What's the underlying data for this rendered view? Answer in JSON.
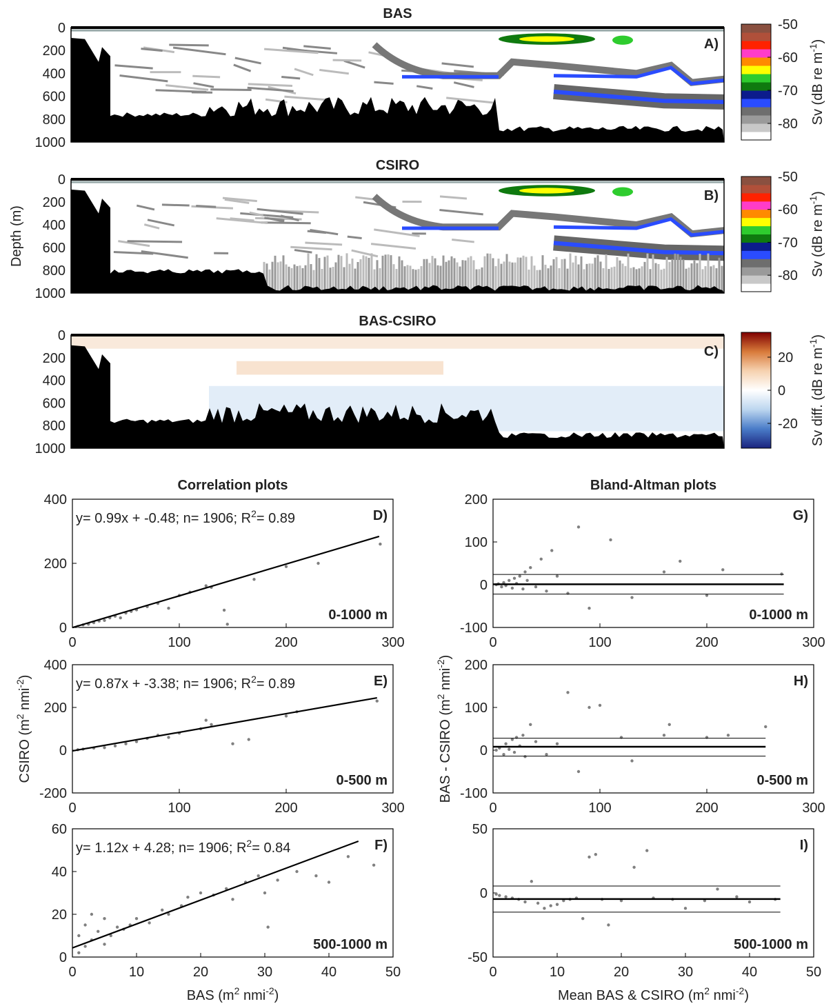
{
  "chart_data": [
    {
      "type": "echogram",
      "title": "BAS",
      "panel_label": "A)",
      "ylim": [
        0,
        1000
      ],
      "yreverse": true,
      "yticks": [
        0,
        200,
        400,
        600,
        800,
        1000
      ],
      "clim": [
        -85,
        -50
      ],
      "cticks": [
        -50,
        -60,
        -70,
        -80
      ],
      "clabel": [
        "Sv (dB re m",
        "-1",
        ")"
      ],
      "colormap": [
        "#ffffff",
        "#c8c8c8",
        "#9a9a9a",
        "#6e6e6e",
        "#2a4cff",
        "#0c1c8c",
        "#0f7a0f",
        "#2ecc2e",
        "#ffff00",
        "#ff8a00",
        "#ff3cc8",
        "#ff2200",
        "#b0503a",
        "#8a5040"
      ]
    },
    {
      "type": "echogram",
      "title": "CSIRO",
      "panel_label": "B)",
      "ylabel": "Depth (m)",
      "ylim": [
        0,
        1000
      ],
      "yreverse": true,
      "yticks": [
        0,
        200,
        400,
        600,
        800,
        1000
      ],
      "clim": [
        -85,
        -50
      ],
      "cticks": [
        -50,
        -60,
        -70,
        -80
      ],
      "clabel": [
        "Sv (dB re m",
        "-1",
        ")"
      ],
      "colormap": [
        "#ffffff",
        "#c8c8c8",
        "#9a9a9a",
        "#6e6e6e",
        "#2a4cff",
        "#0c1c8c",
        "#0f7a0f",
        "#2ecc2e",
        "#ffff00",
        "#ff8a00",
        "#ff3cc8",
        "#ff2200",
        "#b0503a",
        "#8a5040"
      ]
    },
    {
      "type": "echogram",
      "title": "BAS-CSIRO",
      "panel_label": "C)",
      "ylim": [
        0,
        1000
      ],
      "yreverse": true,
      "yticks": [
        0,
        200,
        400,
        600,
        800,
        1000
      ],
      "clim": [
        -35,
        35
      ],
      "cticks": [
        20,
        0,
        -20
      ],
      "clabel": [
        "Sv diff. (dB re m",
        "-1",
        ")"
      ],
      "colormap_gradient": true,
      "colormap": [
        "#1a237e",
        "#4a7cc8",
        "#bcd6ef",
        "#ffffff",
        "#f6d2b0",
        "#d87a3a",
        "#7f0000"
      ]
    },
    {
      "type": "scatter",
      "title": "Correlation plots",
      "panel_label": "D)",
      "layer": "0-1000 m",
      "equation": [
        "y= 0.99x + -0.48; n= 1906; R",
        "2",
        "= 0.89"
      ],
      "xlim": [
        0,
        300
      ],
      "xticks": [
        0,
        100,
        200,
        300
      ],
      "ylim": [
        0,
        400
      ],
      "yticks": [
        0,
        200,
        400
      ],
      "color": "#808080",
      "x": [
        5,
        10,
        15,
        20,
        25,
        30,
        35,
        40,
        45,
        50,
        55,
        60,
        70,
        80,
        90,
        100,
        110,
        125,
        130,
        142,
        145,
        170,
        200,
        230,
        288
      ],
      "values": [
        3,
        8,
        10,
        15,
        20,
        22,
        30,
        35,
        30,
        45,
        50,
        55,
        65,
        75,
        60,
        100,
        110,
        130,
        125,
        54,
        10,
        150,
        190,
        200,
        260
      ],
      "fit": {
        "x": [
          0,
          287
        ],
        "values": [
          -0.48,
          284
        ]
      }
    },
    {
      "type": "scatter",
      "panel_label": "E)",
      "layer": "0-500 m",
      "ylabel": [
        "CSIRO (m",
        "2",
        " nmi",
        "-2",
        ")"
      ],
      "equation": [
        "y= 0.87x + -3.38; n= 1906; R",
        "2",
        "= 0.89"
      ],
      "xlim": [
        0,
        300
      ],
      "xticks": [
        0,
        100,
        200,
        300
      ],
      "ylim": [
        -200,
        400
      ],
      "yticks": [
        -200,
        0,
        200,
        400
      ],
      "color": "#808080",
      "x": [
        5,
        10,
        20,
        30,
        40,
        50,
        60,
        70,
        80,
        90,
        100,
        120,
        125,
        130,
        150,
        165,
        200,
        210,
        285
      ],
      "values": [
        2,
        5,
        10,
        12,
        20,
        30,
        40,
        55,
        70,
        60,
        80,
        100,
        140,
        120,
        30,
        50,
        160,
        180,
        230
      ],
      "fit": {
        "x": [
          0,
          285
        ],
        "values": [
          -3.38,
          245
        ]
      }
    },
    {
      "type": "scatter",
      "panel_label": "F)",
      "layer": "500-1000 m",
      "xlabel": [
        "BAS (m",
        "2",
        " nmi",
        "-2",
        ")"
      ],
      "equation": [
        "y= 1.12x + 4.28; n= 1906; R",
        "2",
        "= 0.84"
      ],
      "xlim": [
        0,
        50
      ],
      "xticks": [
        0,
        10,
        20,
        30,
        40,
        50
      ],
      "ylim": [
        0,
        60
      ],
      "yticks": [
        0,
        20,
        40,
        60
      ],
      "color": "#808080",
      "x": [
        1,
        1,
        2,
        2,
        3,
        3,
        4,
        5,
        5,
        6,
        7,
        8,
        9,
        10,
        12,
        14,
        15,
        17,
        18,
        20,
        22,
        24,
        25,
        27,
        29,
        30,
        30.5,
        32,
        35,
        38,
        40,
        43,
        47
      ],
      "values": [
        2,
        10,
        5,
        15,
        8,
        20,
        12,
        6,
        18,
        10,
        14,
        13,
        15,
        18,
        16,
        22,
        20,
        24,
        28,
        30,
        29,
        32,
        27,
        35,
        38,
        30,
        14,
        36,
        40,
        38,
        35,
        47,
        43
      ],
      "fit": {
        "x": [
          0,
          44.6
        ],
        "values": [
          4.28,
          54.2
        ]
      }
    },
    {
      "type": "bland-altman",
      "title": "Bland-Altman plots",
      "panel_label": "G)",
      "layer": "0-1000 m",
      "xlim": [
        0,
        300
      ],
      "xticks": [
        0,
        100,
        200,
        300
      ],
      "ylim": [
        -100,
        200
      ],
      "yticks": [
        -100,
        0,
        100,
        200
      ],
      "color": "#808080",
      "x": [
        3,
        5,
        8,
        10,
        12,
        15,
        18,
        20,
        22,
        25,
        28,
        30,
        32,
        35,
        40,
        45,
        50,
        55,
        60,
        70,
        80,
        90,
        110,
        130,
        160,
        175,
        200,
        215,
        270
      ],
      "values": [
        0,
        2,
        -5,
        5,
        -2,
        10,
        -8,
        15,
        3,
        20,
        -10,
        30,
        10,
        40,
        -5,
        60,
        -15,
        80,
        20,
        -20,
        135,
        -55,
        105,
        -30,
        30,
        55,
        -25,
        35,
        25
      ],
      "mean_line": {
        "x": [
          0,
          272
        ],
        "values": [
          1,
          1
        ]
      },
      "upper_limit": {
        "x": [
          0,
          272
        ],
        "values": [
          24,
          24
        ]
      },
      "lower_limit": {
        "x": [
          0,
          272
        ],
        "values": [
          -22,
          -22
        ]
      }
    },
    {
      "type": "bland-altman",
      "panel_label": "H)",
      "layer": "0-500 m",
      "ylabel": [
        "BAS - CSIRO (m",
        "2",
        " nmi",
        "-2",
        ")"
      ],
      "xlim": [
        0,
        300
      ],
      "xticks": [
        0,
        100,
        200,
        300
      ],
      "ylim": [
        -100,
        200
      ],
      "yticks": [
        -100,
        0,
        100,
        200
      ],
      "color": "#808080",
      "x": [
        3,
        6,
        10,
        12,
        15,
        18,
        20,
        22,
        25,
        28,
        30,
        35,
        40,
        50,
        60,
        70,
        80,
        90,
        100,
        120,
        130,
        160,
        165,
        200,
        220,
        255
      ],
      "values": [
        0,
        5,
        -10,
        15,
        2,
        25,
        -5,
        30,
        10,
        35,
        -15,
        60,
        20,
        -10,
        15,
        135,
        -50,
        100,
        105,
        30,
        -25,
        35,
        60,
        30,
        35,
        55
      ],
      "mean_line": {
        "x": [
          0,
          255
        ],
        "values": [
          8,
          8
        ]
      },
      "upper_limit": {
        "x": [
          0,
          255
        ],
        "values": [
          28,
          28
        ]
      },
      "lower_limit": {
        "x": [
          0,
          255
        ],
        "values": [
          -14,
          -14
        ]
      }
    },
    {
      "type": "bland-altman",
      "panel_label": "I)",
      "layer": "500-1000 m",
      "xlabel": [
        "Mean BAS & CSIRO (m",
        "2",
        " nmi",
        "-2",
        ")"
      ],
      "xlim": [
        0,
        50
      ],
      "xticks": [
        0,
        10,
        20,
        30,
        40,
        50
      ],
      "ylim": [
        -50,
        50
      ],
      "yticks": [
        -50,
        0,
        50
      ],
      "color": "#808080",
      "x": [
        0.5,
        1,
        2,
        3,
        4,
        5,
        6,
        7,
        8,
        9,
        10,
        11,
        12,
        13,
        14,
        15,
        16,
        17,
        18,
        20,
        22,
        24,
        25,
        28,
        30,
        33,
        35,
        38,
        40,
        44
      ],
      "values": [
        -1,
        -2,
        -3,
        -4,
        -5,
        -7,
        9,
        -8,
        -12,
        -10,
        -9,
        -6,
        -5,
        -4,
        -20,
        28,
        30,
        -5,
        -25,
        -6,
        20,
        33,
        -4,
        -5,
        -12,
        -6,
        3,
        -3,
        -7,
        -5
      ],
      "mean_line": {
        "x": [
          0,
          44.8
        ],
        "values": [
          -4.8,
          -4.8
        ]
      },
      "upper_limit": {
        "x": [
          0,
          44.8
        ],
        "values": [
          5.4,
          5.4
        ]
      },
      "lower_limit": {
        "x": [
          0,
          44.8
        ],
        "values": [
          -15,
          -15
        ]
      }
    }
  ]
}
